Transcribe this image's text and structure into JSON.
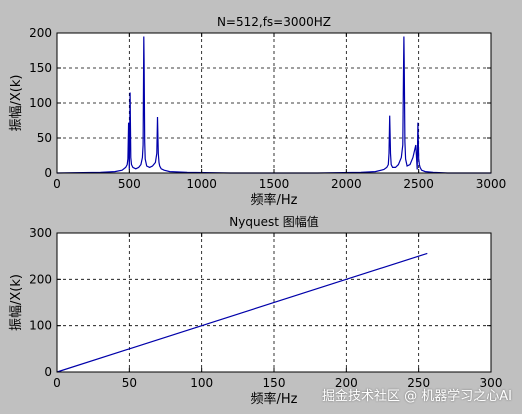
{
  "watermark": "掘金技术社区 @ 机器学习之心AI",
  "colors": {
    "background": "#c0c0c0",
    "axes": "#ffffff",
    "line": "#0000aa",
    "grid": "#000000"
  },
  "chart_data": [
    {
      "type": "line",
      "title": "N=512,fs=3000HZ",
      "xlabel": "频率/Hz",
      "ylabel": "振幅/X(k)",
      "xlim": [
        0,
        3000
      ],
      "ylim": [
        0,
        200
      ],
      "xticks": [
        0,
        500,
        1000,
        1500,
        2000,
        2500,
        3000
      ],
      "yticks": [
        0,
        50,
        100,
        150,
        200
      ],
      "grid": true,
      "series": [
        {
          "x": [
            0,
            300,
            400,
            450,
            475,
            485,
            490,
            495,
            500,
            505,
            510,
            515,
            525,
            545,
            565,
            580,
            590,
            595,
            600,
            602,
            604,
            606,
            610,
            620,
            640,
            660,
            680,
            690,
            695,
            700,
            705,
            710,
            720,
            740,
            780,
            900,
            1200,
            1500,
            1800,
            2100,
            2200,
            2260,
            2280,
            2290,
            2295,
            2300,
            2305,
            2310,
            2320,
            2340,
            2360,
            2380,
            2390,
            2395,
            2398,
            2400,
            2405,
            2410,
            2420,
            2440,
            2460,
            2480,
            2490,
            2495,
            2500,
            2505,
            2510,
            2520,
            2545,
            2600,
            2700,
            3000
          ],
          "y": [
            0,
            1,
            2,
            4,
            8,
            12,
            20,
            72,
            5,
            115,
            22,
            12,
            8,
            6,
            8,
            12,
            22,
            40,
            195,
            160,
            100,
            45,
            20,
            10,
            8,
            10,
            15,
            28,
            80,
            28,
            15,
            10,
            6,
            4,
            2,
            1,
            0,
            0,
            0,
            1,
            2,
            5,
            8,
            12,
            28,
            82,
            28,
            12,
            8,
            8,
            12,
            22,
            40,
            145,
            195,
            160,
            45,
            20,
            10,
            12,
            22,
            40,
            5,
            72,
            20,
            12,
            8,
            4,
            2,
            1,
            0,
            0
          ]
        }
      ]
    },
    {
      "type": "line",
      "title": "Nyquest 图幅值",
      "xlabel": "频率/Hz",
      "ylabel": "振幅/X(k)",
      "xlim": [
        0,
        300
      ],
      "ylim": [
        0,
        300
      ],
      "xticks": [
        0,
        50,
        100,
        150,
        200,
        250,
        300
      ],
      "yticks": [
        0,
        100,
        200,
        300
      ],
      "grid": true,
      "series": [
        {
          "x": [
            0,
            256
          ],
          "y": [
            0,
            256
          ]
        }
      ]
    }
  ]
}
